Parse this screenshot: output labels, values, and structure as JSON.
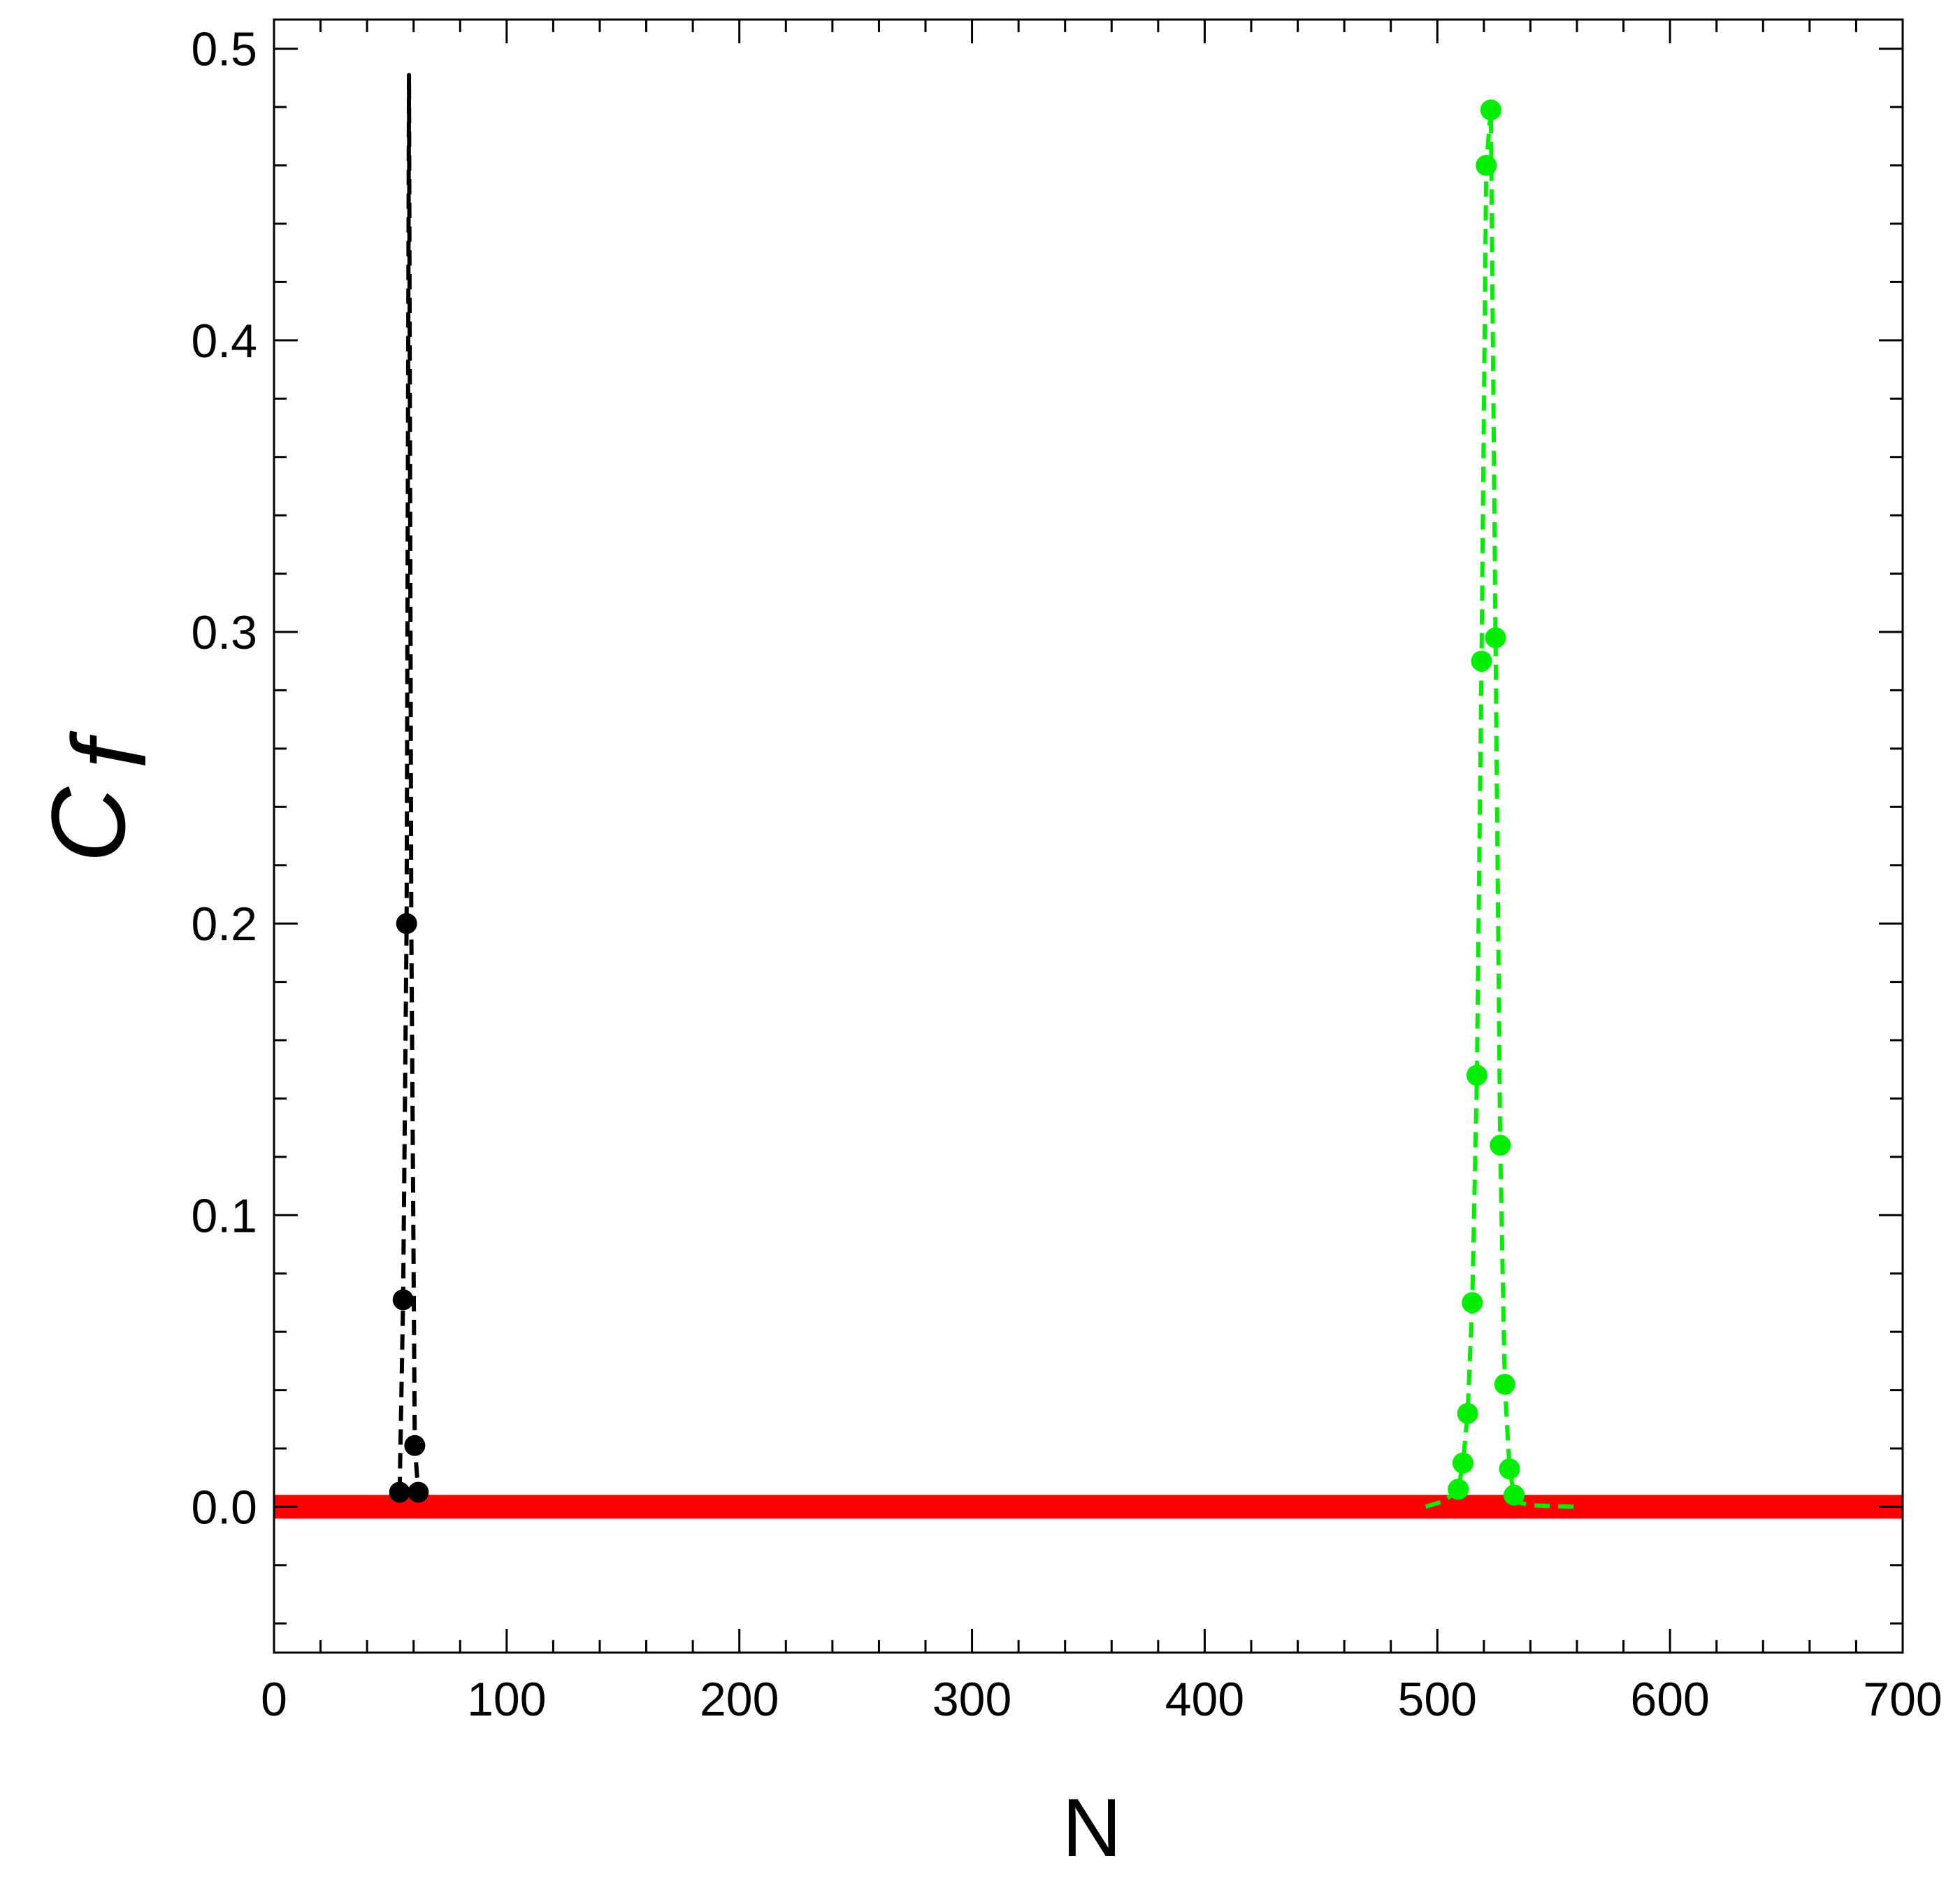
{
  "chart_data": {
    "type": "line",
    "title": "",
    "xlabel": "N",
    "ylabel": {
      "main": "C",
      "sub": "f"
    },
    "xlim": [
      0,
      700
    ],
    "ylim": [
      -0.05,
      0.51
    ],
    "x_ticks": [
      0,
      100,
      200,
      300,
      400,
      500,
      600,
      700
    ],
    "x_tick_labels": [
      "0",
      "100",
      "200",
      "300",
      "400",
      "500",
      "600",
      "700"
    ],
    "y_ticks": [
      0.0,
      0.1,
      0.2,
      0.3,
      0.4,
      0.5
    ],
    "y_tick_labels": [
      "0.0",
      "0.1",
      "0.2",
      "0.3",
      "0.4",
      "0.5"
    ],
    "grid": false,
    "legend": "none",
    "series": [
      {
        "color": "#ff0000",
        "style": "solid-thick",
        "markers": false,
        "x": [
          0,
          700
        ],
        "y": [
          0,
          0
        ]
      },
      {
        "color": "#000000",
        "style": "dashed",
        "markers": true,
        "x": [
          54,
          55.5,
          57,
          58,
          59,
          60.5,
          62
        ],
        "y": [
          0.005,
          0.071,
          0.2,
          0.491,
          0.2,
          0.021,
          0.005
        ]
      },
      {
        "color": "#00ee00",
        "style": "dashed",
        "markers": true,
        "x": [
          495,
          503,
          509,
          511,
          513,
          515,
          517,
          519,
          521,
          523,
          525,
          527,
          529,
          531,
          533,
          535,
          540,
          550,
          560
        ],
        "y": [
          0.0,
          0.002,
          0.006,
          0.015,
          0.032,
          0.07,
          0.148,
          0.29,
          0.46,
          0.479,
          0.298,
          0.124,
          0.042,
          0.013,
          0.004,
          0.0015,
          0.0005,
          0.0002,
          0.0
        ],
        "marker_x": [
          509,
          511,
          513,
          515,
          517,
          519,
          521,
          523,
          525,
          527,
          529,
          531,
          533
        ],
        "marker_y": [
          0.006,
          0.015,
          0.032,
          0.07,
          0.148,
          0.29,
          0.46,
          0.479,
          0.298,
          0.124,
          0.042,
          0.013,
          0.004
        ]
      }
    ]
  }
}
